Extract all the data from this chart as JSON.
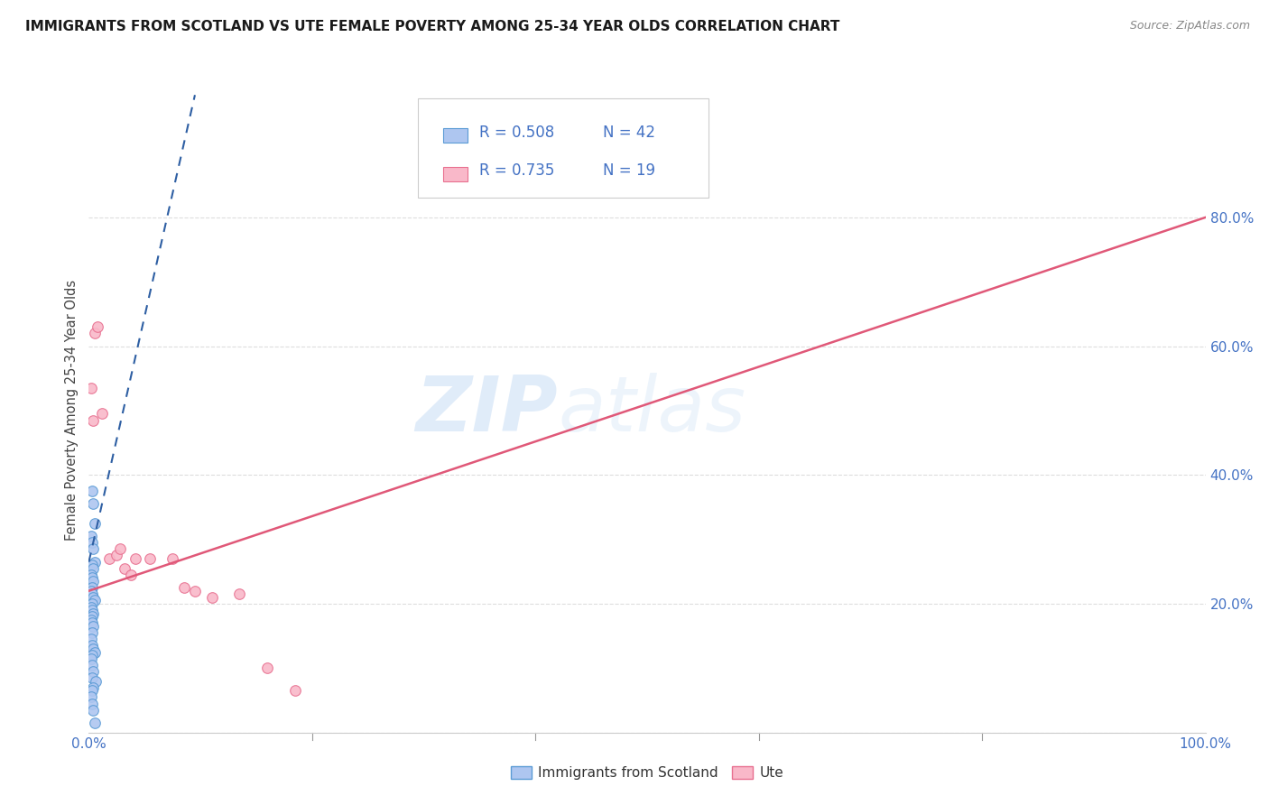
{
  "title": "IMMIGRANTS FROM SCOTLAND VS UTE FEMALE POVERTY AMONG 25-34 YEAR OLDS CORRELATION CHART",
  "source": "Source: ZipAtlas.com",
  "ylabel": "Female Poverty Among 25-34 Year Olds",
  "xlim": [
    0.0,
    1.0
  ],
  "ylim": [
    0.0,
    1.0
  ],
  "xticks": [
    0.0,
    0.2,
    0.4,
    0.6,
    0.8,
    1.0
  ],
  "yticks": [
    0.0,
    0.2,
    0.4,
    0.6,
    0.8
  ],
  "xtick_labels": [
    "0.0%",
    "",
    "",
    "",
    "",
    "100.0%"
  ],
  "ytick_labels": [
    "",
    "20.0%",
    "40.0%",
    "60.0%",
    "80.0%"
  ],
  "legend_labels": [
    "Immigrants from Scotland",
    "Ute"
  ],
  "legend_r": [
    "0.508",
    "0.735"
  ],
  "legend_n": [
    "42",
    "19"
  ],
  "scatter_blue": {
    "x": [
      0.003,
      0.004,
      0.005,
      0.002,
      0.003,
      0.004,
      0.005,
      0.003,
      0.004,
      0.002,
      0.003,
      0.004,
      0.003,
      0.002,
      0.003,
      0.004,
      0.005,
      0.003,
      0.002,
      0.003,
      0.004,
      0.003,
      0.002,
      0.003,
      0.004,
      0.003,
      0.002,
      0.003,
      0.004,
      0.005,
      0.003,
      0.002,
      0.003,
      0.004,
      0.003,
      0.006,
      0.004,
      0.003,
      0.002,
      0.003,
      0.004,
      0.005
    ],
    "y": [
      0.375,
      0.355,
      0.325,
      0.305,
      0.295,
      0.285,
      0.265,
      0.26,
      0.255,
      0.245,
      0.24,
      0.235,
      0.225,
      0.22,
      0.215,
      0.21,
      0.205,
      0.2,
      0.195,
      0.19,
      0.185,
      0.18,
      0.175,
      0.17,
      0.165,
      0.155,
      0.145,
      0.135,
      0.13,
      0.125,
      0.12,
      0.115,
      0.105,
      0.095,
      0.085,
      0.08,
      0.07,
      0.065,
      0.055,
      0.045,
      0.035,
      0.015
    ],
    "color": "#aec6f0",
    "edgecolor": "#5b9bd5",
    "size": 70
  },
  "scatter_pink": {
    "x": [
      0.002,
      0.004,
      0.005,
      0.008,
      0.012,
      0.018,
      0.025,
      0.028,
      0.032,
      0.038,
      0.042,
      0.055,
      0.075,
      0.085,
      0.095,
      0.11,
      0.135,
      0.16,
      0.185
    ],
    "y": [
      0.535,
      0.485,
      0.62,
      0.63,
      0.495,
      0.27,
      0.275,
      0.285,
      0.255,
      0.245,
      0.27,
      0.27,
      0.27,
      0.225,
      0.22,
      0.21,
      0.215,
      0.1,
      0.065
    ],
    "color": "#f9b8c9",
    "edgecolor": "#e87090",
    "size": 70
  },
  "trendline_blue": {
    "x": [
      0.0,
      0.095
    ],
    "y": [
      0.265,
      0.99
    ],
    "color": "#2e5fa3",
    "linestyle": "--",
    "linewidth": 1.5
  },
  "trendline_pink": {
    "x": [
      0.0,
      1.0
    ],
    "y": [
      0.22,
      0.8
    ],
    "color": "#e05878",
    "linestyle": "-",
    "linewidth": 1.8
  },
  "watermark_zip": "ZIP",
  "watermark_atlas": "atlas",
  "background_color": "#ffffff",
  "grid_color": "#dddddd"
}
